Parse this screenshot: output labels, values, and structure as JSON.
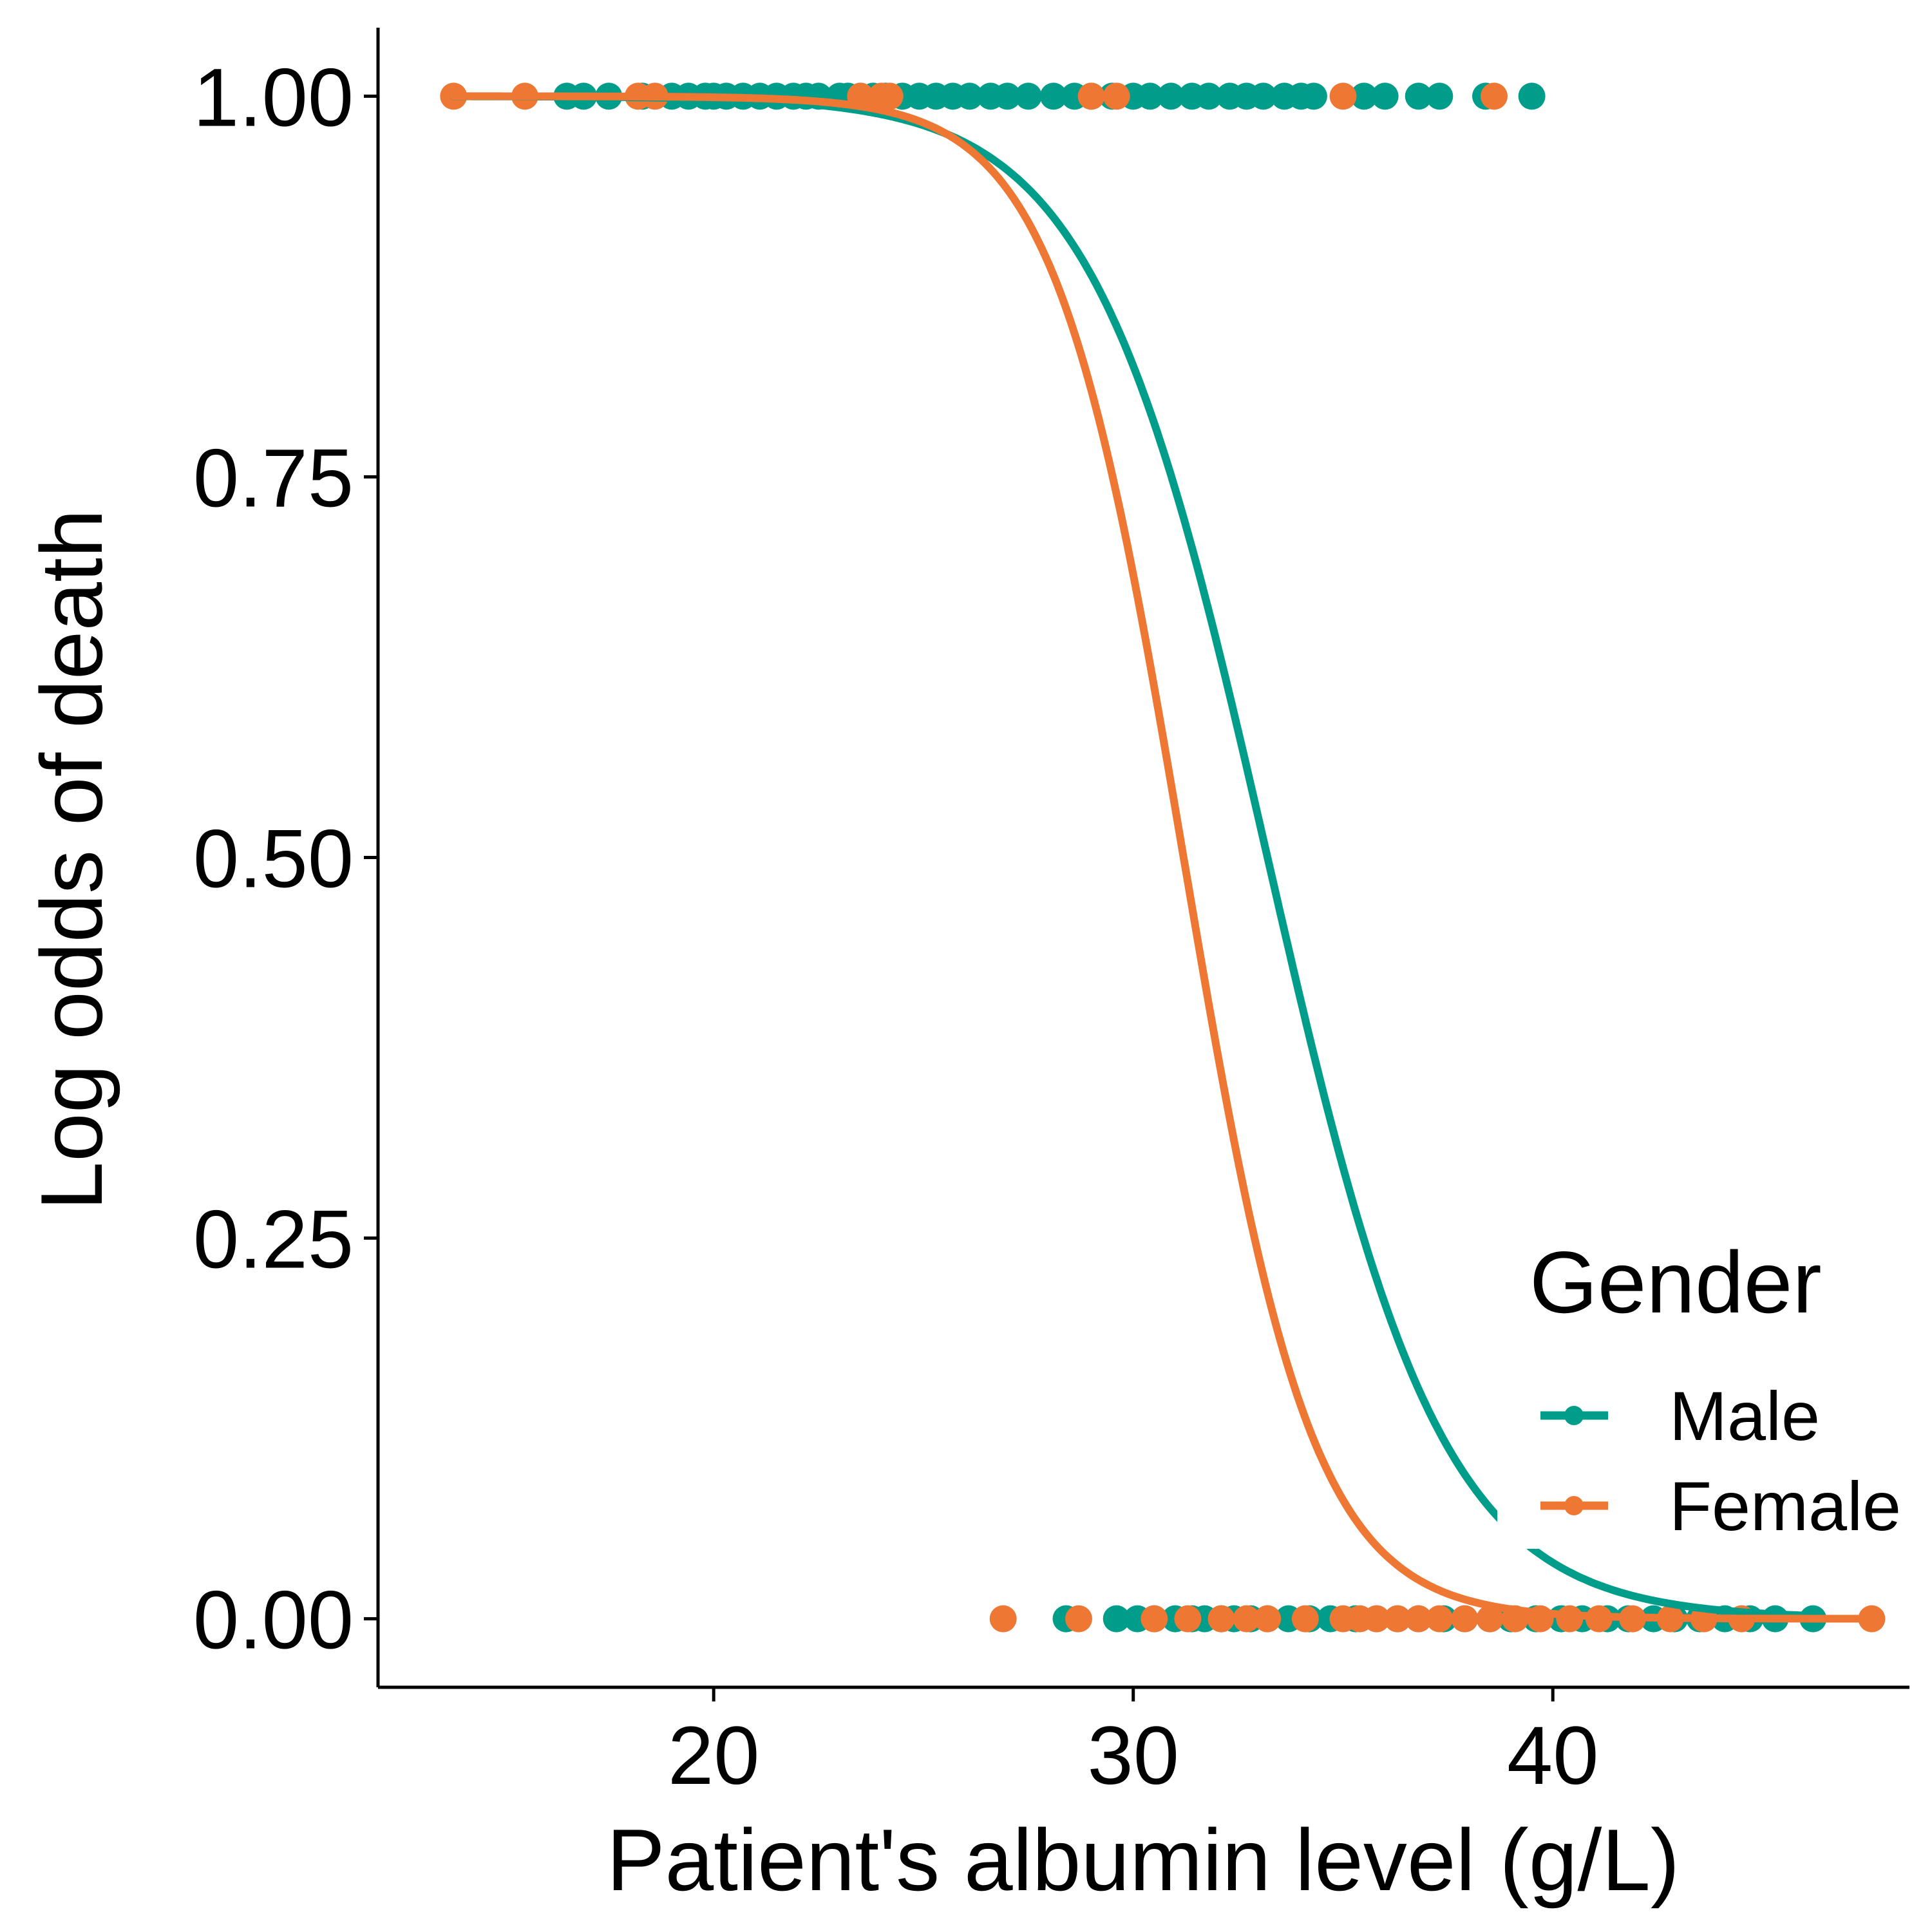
{
  "chart_data": {
    "type": "scatter",
    "xlabel": "Patient's albumin level (g/L)",
    "ylabel": "Log odds of death",
    "xlim": [
      12,
      48.5
    ],
    "ylim": [
      -0.045,
      1.045
    ],
    "x_ticks": [
      20,
      30,
      40
    ],
    "y_ticks": [
      0,
      0.25,
      0.5,
      0.75,
      1
    ],
    "x_tick_labels": [
      "20",
      "30",
      "40"
    ],
    "y_tick_labels": [
      "0.00",
      "0.25",
      "0.50",
      "0.75",
      "1.00"
    ],
    "legend": {
      "title": "Gender",
      "position": "bottom-right",
      "entries": [
        "Male",
        "Female"
      ]
    },
    "grid": false,
    "series": [
      {
        "name": "Male",
        "color": "#009E8A",
        "points_died": [
          16.5,
          16.9,
          17.5,
          18.3,
          19.0,
          19.4,
          19.8,
          20.0,
          20.3,
          20.7,
          21.1,
          21.5,
          21.9,
          22.2,
          22.5,
          23.0,
          23.2,
          23.5,
          23.8,
          24.1,
          24.5,
          24.9,
          25.3,
          25.7,
          26.1,
          26.6,
          27.0,
          27.5,
          28.1,
          28.6,
          29.0,
          29.5,
          30.0,
          30.4,
          30.9,
          31.4,
          31.8,
          32.3,
          32.7,
          33.1,
          33.6,
          34.0,
          34.3,
          35.5,
          36.0,
          36.8,
          37.3,
          38.4,
          39.5
        ],
        "points_survived": [
          28.4,
          29.6,
          30.1,
          30.5,
          31.0,
          31.4,
          31.7,
          32.1,
          32.4,
          32.8,
          33.2,
          33.7,
          34.2,
          34.7,
          35.3,
          35.8,
          36.3,
          36.8,
          37.4,
          37.9,
          38.5,
          39.0,
          39.6,
          40.2,
          40.7,
          41.3,
          41.8,
          42.4,
          42.9,
          43.5,
          44.1,
          44.7,
          45.3,
          46.2
        ],
        "curve": {
          "model": "logistic",
          "midpoint": 33.2,
          "slope": 0.48,
          "x_range": [
            13.8,
            46.2
          ]
        }
      },
      {
        "name": "Female",
        "color": "#EE7733",
        "points_died": [
          13.8,
          15.5,
          18.2,
          18.6,
          23.5,
          24.0,
          24.2,
          29.0,
          29.6,
          35.0,
          38.6
        ],
        "points_survived": [
          26.9,
          28.7,
          30.5,
          31.3,
          32.1,
          32.7,
          33.2,
          34.1,
          35.0,
          35.4,
          35.8,
          36.3,
          36.8,
          37.3,
          37.9,
          38.5,
          39.1,
          39.7,
          40.4,
          41.1,
          41.9,
          42.8,
          43.6,
          44.5,
          47.6
        ],
        "curve": {
          "model": "logistic",
          "midpoint": 31.2,
          "slope": 0.65,
          "x_range": [
            13.8,
            47.6
          ]
        }
      }
    ]
  }
}
